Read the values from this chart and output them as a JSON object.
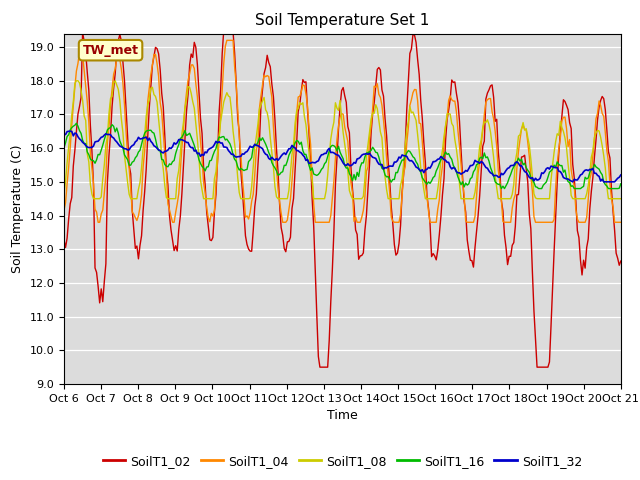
{
  "title": "Soil Temperature Set 1",
  "ylabel": "Soil Temperature (C)",
  "xlabel": "Time",
  "ylim": [
    9.0,
    19.4
  ],
  "yticks": [
    9.0,
    10.0,
    11.0,
    12.0,
    13.0,
    14.0,
    15.0,
    16.0,
    17.0,
    18.0,
    19.0
  ],
  "x_tick_labels": [
    "Oct 6",
    "Oct 7",
    "Oct 8",
    "Oct 9",
    "Oct 10",
    "Oct 11",
    "Oct 12",
    "Oct 13",
    "Oct 14",
    "Oct 15",
    "Oct 16",
    "Oct 17",
    "Oct 18",
    "Oct 19",
    "Oct 20",
    "Oct 21"
  ],
  "series_names": [
    "SoilT1_02",
    "SoilT1_04",
    "SoilT1_08",
    "SoilT1_16",
    "SoilT1_32"
  ],
  "series_colors": [
    "#cc0000",
    "#ff8800",
    "#cccc00",
    "#00bb00",
    "#0000cc"
  ],
  "series_lw": [
    1.0,
    1.0,
    1.0,
    1.0,
    1.2
  ],
  "annotation_text": "TW_met",
  "annotation_color": "#990000",
  "annotation_bg": "#ffffcc",
  "annotation_edge": "#aa8800",
  "background_color": "#dcdcdc",
  "fig_background": "#ffffff",
  "title_fontsize": 11,
  "axis_fontsize": 9,
  "tick_fontsize": 8,
  "legend_fontsize": 9,
  "n_days": 15,
  "hours_per_day": 24
}
